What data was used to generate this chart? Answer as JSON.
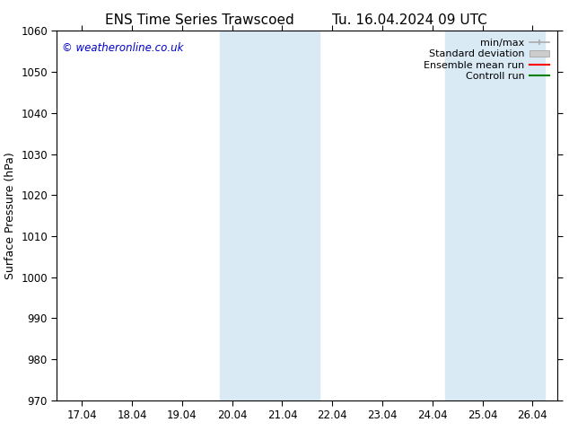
{
  "title_left": "ENS Time Series Trawscoed",
  "title_right": "Tu. 16.04.2024 09 UTC",
  "ylabel": "Surface Pressure (hPa)",
  "ylim": [
    970,
    1060
  ],
  "yticks": [
    970,
    980,
    990,
    1000,
    1010,
    1020,
    1030,
    1040,
    1050,
    1060
  ],
  "xtick_labels": [
    "17.04",
    "18.04",
    "19.04",
    "20.04",
    "21.04",
    "22.04",
    "23.04",
    "24.04",
    "25.04",
    "26.04"
  ],
  "xtick_positions": [
    0,
    1,
    2,
    3,
    4,
    5,
    6,
    7,
    8,
    9
  ],
  "xlim_start": -0.5,
  "xlim_end": 9.5,
  "shaded_bands": [
    {
      "x_start": 2.75,
      "x_end": 4.75
    },
    {
      "x_start": 7.25,
      "x_end": 9.25
    }
  ],
  "shade_color": "#daeaf5",
  "watermark": "© weatheronline.co.uk",
  "watermark_color": "#0000cc",
  "background_color": "#ffffff",
  "title_fontsize": 11,
  "axis_label_fontsize": 9,
  "tick_fontsize": 8.5,
  "legend_fontsize": 8
}
